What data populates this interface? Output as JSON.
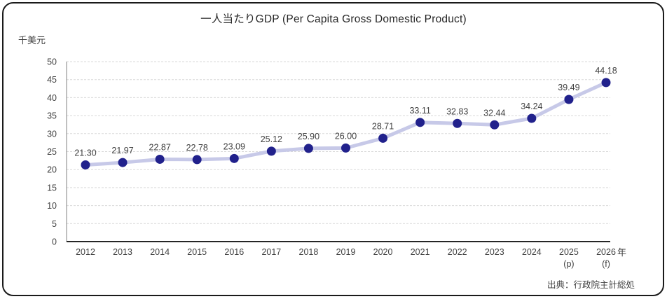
{
  "title": "一人当たりGDP (Per Capita Gross Domestic Product)",
  "source_note": "出典：行政院主計総処",
  "chart_data": {
    "type": "line",
    "title": "一人当たりGDP (Per Capita Gross Domestic Product)",
    "y_unit_label": "千美元",
    "x_unit_label": "年",
    "categories": [
      {
        "label": "2012",
        "sublabel": ""
      },
      {
        "label": "2013",
        "sublabel": ""
      },
      {
        "label": "2014",
        "sublabel": ""
      },
      {
        "label": "2015",
        "sublabel": ""
      },
      {
        "label": "2016",
        "sublabel": ""
      },
      {
        "label": "2017",
        "sublabel": ""
      },
      {
        "label": "2018",
        "sublabel": ""
      },
      {
        "label": "2019",
        "sublabel": ""
      },
      {
        "label": "2020",
        "sublabel": ""
      },
      {
        "label": "2021",
        "sublabel": ""
      },
      {
        "label": "2022",
        "sublabel": ""
      },
      {
        "label": "2023",
        "sublabel": ""
      },
      {
        "label": "2024",
        "sublabel": ""
      },
      {
        "label": "2025",
        "sublabel": "(p)"
      },
      {
        "label": "2026",
        "sublabel": "(f)"
      }
    ],
    "values": [
      21.3,
      21.97,
      22.87,
      22.78,
      23.09,
      25.12,
      25.9,
      26.0,
      28.71,
      33.11,
      32.83,
      32.44,
      34.24,
      39.49,
      44.18
    ],
    "data_labels": [
      "21.30",
      "21.97",
      "22.87",
      "22.78",
      "23.09",
      "25.12",
      "25.90",
      "26.00",
      "28.71",
      "33.11",
      "32.83",
      "32.44",
      "34.24",
      "39.49",
      "44.18"
    ],
    "ylim": [
      0,
      50
    ],
    "ytick_step": 5,
    "yticks": [
      0,
      5,
      10,
      15,
      20,
      25,
      30,
      35,
      40,
      45,
      50
    ],
    "grid": "horizontal-dashed",
    "legend": "none",
    "colors": {
      "line": "#c7c9e8",
      "marker": "#21218c",
      "grid": "#d9d9d9",
      "y_axis": "#808080",
      "x_axis": "#262626",
      "label": "#404040",
      "title": "#262626",
      "frame_border": "#1a1a1a",
      "background": "#ffffff"
    }
  }
}
